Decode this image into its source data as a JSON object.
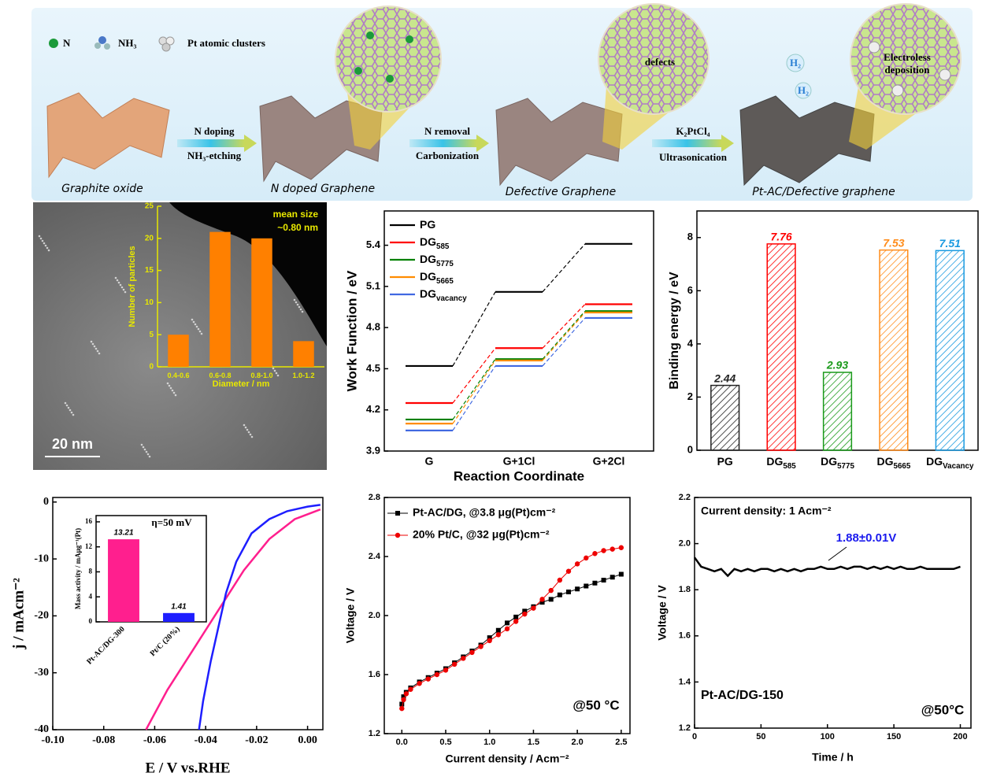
{
  "schematic": {
    "legend": [
      "N",
      "NH₃",
      "Pt atomic clusters"
    ],
    "steps": [
      {
        "top": "N doping",
        "bottom": "NH₃-etching"
      },
      {
        "top": "N removal",
        "bottom": "Carbonization"
      },
      {
        "top": "K₂PtCl₄",
        "bottom": "Ultrasonication"
      }
    ],
    "stages": [
      "Graphite oxide",
      "N doped Graphene",
      "Defective Graphene",
      "Pt-AC/Defective graphene"
    ],
    "defects_label": "defects",
    "deposition_label": [
      "Electroless",
      "deposition"
    ],
    "h2_labels": [
      "H₂",
      "H₂"
    ]
  },
  "chart_data": [
    {
      "type": "bar",
      "categories": [
        "0.4-0.6",
        "0.6-0.8",
        "0.8-1.0",
        "1.0-1.2"
      ],
      "values": [
        5,
        21,
        20,
        4
      ],
      "color": "#ff8000",
      "ylim": [
        0,
        25
      ],
      "yticks": [
        0,
        5,
        10,
        15,
        20,
        25
      ],
      "xlabel": "Diameter / nm",
      "ylabel": "Number of particles",
      "axis_color": "#e8e800",
      "annotations": [
        "mean size",
        "~0.80 nm"
      ],
      "scale_bar": "20 nm"
    },
    {
      "type": "step",
      "categories": [
        "G",
        "G+1Cl",
        "G+2Cl"
      ],
      "xlabel": "Reaction Coordinate",
      "ylabel": "Work Function / eV",
      "ylim": [
        3.9,
        5.65
      ],
      "yticks": [
        3.9,
        4.2,
        4.5,
        4.8,
        5.1,
        5.4
      ],
      "series": [
        {
          "name": "PG",
          "color": "#000000",
          "values": [
            4.52,
            5.06,
            5.41
          ]
        },
        {
          "name": "DG",
          "subscript": "585",
          "color": "#ff0000",
          "values": [
            4.25,
            4.65,
            4.97
          ]
        },
        {
          "name": "DG",
          "subscript": "5775",
          "color": "#008000",
          "values": [
            4.13,
            4.57,
            4.92
          ]
        },
        {
          "name": "DG",
          "subscript": "5665",
          "color": "#ff8c00",
          "values": [
            4.1,
            4.56,
            4.91
          ]
        },
        {
          "name": "DG",
          "subscript": "vacancy",
          "color": "#4169e1",
          "values": [
            4.05,
            4.52,
            4.87
          ]
        }
      ]
    },
    {
      "type": "bar",
      "categories": [
        "PG",
        "DG",
        "DG",
        "DG",
        "DG"
      ],
      "category_subscripts": [
        null,
        "585",
        "5775",
        "5665",
        "Vacancy"
      ],
      "values": [
        2.44,
        7.76,
        2.93,
        7.53,
        7.51
      ],
      "colors": [
        "#222222",
        "#ff0000",
        "#1a9a1a",
        "#ff8c1a",
        "#1a9ae0"
      ],
      "hatch": true,
      "data_labels": true,
      "ylim": [
        0,
        9
      ],
      "yticks": [
        0,
        2,
        4,
        6,
        8
      ],
      "ylabel": "Binding energy / eV"
    },
    {
      "type": "line",
      "xlabel": "E / V vs.RHE",
      "ylabel": "j / mAcm⁻²",
      "xlim": [
        -0.1,
        0.006
      ],
      "ylim": [
        -40,
        0.8
      ],
      "xticks": [
        {
          "value": -0.1,
          "label": "-0.10"
        },
        -0.08,
        -0.06,
        -0.04,
        -0.02,
        {
          "value": 0,
          "label": "0.00"
        }
      ],
      "yticks": [
        -40,
        -30,
        -20,
        -10,
        0
      ],
      "series": [
        {
          "color": "#ff1f8e",
          "x": [
            -0.0634,
            -0.055,
            -0.045,
            -0.035,
            -0.025,
            -0.015,
            -0.005,
            0.005
          ],
          "values": [
            -40,
            -33,
            -26,
            -19,
            -12,
            -6.5,
            -3,
            -1.3
          ]
        },
        {
          "color": "#1e1eff",
          "x": [
            -0.0426,
            -0.041,
            -0.038,
            -0.035,
            -0.032,
            -0.028,
            -0.022,
            -0.015,
            -0.008,
            0,
            0.005
          ],
          "values": [
            -40,
            -35,
            -28,
            -22,
            -16,
            -10.5,
            -5.5,
            -3,
            -1.6,
            -0.8,
            -0.5
          ]
        }
      ],
      "inset": {
        "type": "bar",
        "categories": [
          "Pt-AC/DG-300",
          "Pt/C (20%)"
        ],
        "values": [
          13.21,
          1.41
        ],
        "colors": [
          "#ff1f8e",
          "#1e1eff"
        ],
        "data_labels": true,
        "ylim": [
          0,
          17
        ],
        "yticks": [
          0,
          4,
          8,
          12,
          16
        ],
        "ylabel": "Mass activity / mAμg⁻¹(Pt)",
        "annotations": [
          "η=50 mV"
        ]
      }
    },
    {
      "type": "line",
      "xlabel": "Current density / Acm⁻²",
      "ylabel": "Voltage / V",
      "xlim": [
        -0.2,
        2.6
      ],
      "ylim": [
        1.2,
        2.8
      ],
      "xticks": [
        {
          "value": 0,
          "label": "0.0"
        },
        0.5,
        {
          "value": 1,
          "label": "1.0"
        },
        1.5,
        {
          "value": 2,
          "label": "2.0"
        },
        2.5
      ],
      "yticks": [
        1.2,
        1.6,
        {
          "value": 2,
          "label": "2.0"
        },
        2.4,
        2.8
      ],
      "series": [
        {
          "name": "Pt-AC/DG, @3.8 μg(Pt)cm⁻²",
          "color": "#000000",
          "marker": "square",
          "x": [
            0,
            0.02,
            0.05,
            0.1,
            0.2,
            0.3,
            0.4,
            0.5,
            0.6,
            0.7,
            0.8,
            0.9,
            1.0,
            1.1,
            1.2,
            1.3,
            1.4,
            1.5,
            1.6,
            1.7,
            1.8,
            1.9,
            2.0,
            2.1,
            2.2,
            2.3,
            2.4,
            2.5
          ],
          "values": [
            1.4,
            1.45,
            1.48,
            1.51,
            1.55,
            1.58,
            1.61,
            1.64,
            1.68,
            1.72,
            1.76,
            1.8,
            1.85,
            1.9,
            1.95,
            1.99,
            2.03,
            2.06,
            2.09,
            2.11,
            2.14,
            2.16,
            2.18,
            2.2,
            2.22,
            2.24,
            2.26,
            2.28
          ]
        },
        {
          "name": "20% Pt/C, @32 μg(Pt)cm⁻²",
          "color": "#ee0000",
          "marker": "circle",
          "x": [
            0,
            0.02,
            0.05,
            0.1,
            0.2,
            0.3,
            0.4,
            0.5,
            0.6,
            0.7,
            0.8,
            0.9,
            1.0,
            1.1,
            1.2,
            1.3,
            1.4,
            1.5,
            1.6,
            1.7,
            1.8,
            1.9,
            2.0,
            2.1,
            2.2,
            2.3,
            2.4,
            2.5
          ],
          "values": [
            1.37,
            1.43,
            1.47,
            1.5,
            1.54,
            1.57,
            1.6,
            1.63,
            1.67,
            1.71,
            1.75,
            1.79,
            1.83,
            1.87,
            1.91,
            1.96,
            2.01,
            2.05,
            2.11,
            2.17,
            2.24,
            2.3,
            2.35,
            2.39,
            2.42,
            2.44,
            2.45,
            2.46
          ]
        }
      ],
      "annotations": [
        "@50 °C"
      ]
    },
    {
      "type": "line",
      "xlabel": "Time / h",
      "ylabel": "Voltage / V",
      "xlim": [
        0,
        208
      ],
      "ylim": [
        1.2,
        2.2
      ],
      "xticks": [
        0,
        50,
        100,
        150,
        200
      ],
      "yticks": [
        1.2,
        1.4,
        1.6,
        1.8,
        {
          "value": 2,
          "label": "2.0"
        },
        2.2
      ],
      "series": [
        {
          "color": "#000000",
          "x": [
            0,
            5,
            10,
            15,
            20,
            25,
            30,
            35,
            40,
            45,
            50,
            55,
            60,
            65,
            70,
            75,
            80,
            85,
            90,
            95,
            100,
            105,
            110,
            115,
            120,
            125,
            130,
            135,
            140,
            145,
            150,
            155,
            160,
            165,
            170,
            175,
            180,
            185,
            190,
            195,
            200
          ],
          "values": [
            1.94,
            1.9,
            1.89,
            1.88,
            1.89,
            1.86,
            1.89,
            1.88,
            1.89,
            1.88,
            1.89,
            1.89,
            1.88,
            1.89,
            1.88,
            1.89,
            1.88,
            1.89,
            1.89,
            1.9,
            1.89,
            1.89,
            1.9,
            1.89,
            1.9,
            1.9,
            1.89,
            1.9,
            1.89,
            1.9,
            1.89,
            1.9,
            1.89,
            1.89,
            1.9,
            1.89,
            1.89,
            1.89,
            1.89,
            1.89,
            1.9
          ]
        }
      ],
      "annotations": [
        "Current density: 1 Acm⁻²",
        "1.88±0.01V",
        "Pt-AC/DG-150",
        "@50°C"
      ]
    }
  ]
}
